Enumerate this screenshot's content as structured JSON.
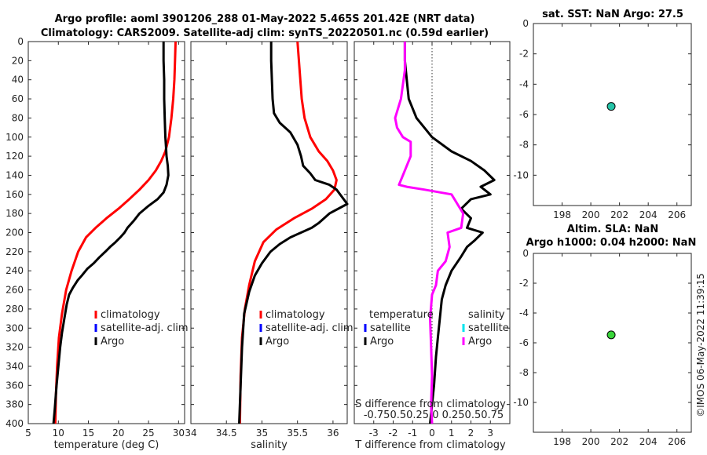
{
  "figure": {
    "title_line1": "Argo profile: aoml 3901206_288 01-May-2022 5.465S 201.42E (NRT data)",
    "title_line2": "Climatology: CARS2009. Satellite-adj clim: synTS_20220501.nc (0.59d earlier)",
    "stamp": "©IMOS 06-May-2022 11:39:15",
    "colors": {
      "climatology": "#ff0000",
      "satellite_clim": "#0000ff",
      "argo": "#000000",
      "sal_satellite": "#00e5ee",
      "sal_argo": "#ff00ff",
      "marker_sst": "#25c4a8",
      "marker_sla": "#39d43a"
    }
  },
  "chart_data": [
    {
      "id": "temperature",
      "type": "line",
      "xlabel": "temperature (deg C)",
      "ylabel": "",
      "xlim": [
        5,
        31
      ],
      "ylim": [
        0,
        400
      ],
      "y_reversed": true,
      "xticks": [
        5,
        10,
        15,
        20,
        25,
        30
      ],
      "yticks": [
        0,
        20,
        40,
        60,
        80,
        100,
        120,
        140,
        160,
        180,
        200,
        220,
        240,
        260,
        280,
        300,
        320,
        340,
        360,
        380,
        400
      ],
      "legend": [
        "climatology",
        "satellite-adj. clim",
        "Argo"
      ],
      "series": [
        {
          "name": "climatology",
          "color": "#ff0000",
          "x": [
            29.5,
            29.4,
            29.3,
            29.1,
            28.8,
            28.4,
            27.8,
            27.1,
            26.2,
            25.0,
            23.5,
            21.8,
            20.0,
            18.0,
            16.2,
            14.6,
            13.3,
            12.2,
            11.3,
            10.6,
            10.1,
            9.8,
            9.6,
            9.5
          ],
          "y": [
            0,
            20,
            40,
            60,
            80,
            100,
            115,
            125,
            135,
            145,
            155,
            165,
            175,
            185,
            195,
            205,
            220,
            240,
            260,
            285,
            310,
            340,
            370,
            400
          ]
        },
        {
          "name": "Argo",
          "color": "#000000",
          "x": [
            27.5,
            27.5,
            27.6,
            27.6,
            27.7,
            27.8,
            27.9,
            28.0,
            28.2,
            28.3,
            28.0,
            27.5,
            26.5,
            25.0,
            23.5,
            22.5,
            21.5,
            21.0,
            20.3,
            19.5,
            18.6,
            17.8,
            16.8,
            15.9,
            14.8,
            13.9,
            13.2,
            12.4,
            11.8,
            11.4,
            11.0,
            10.6,
            10.3,
            10.0,
            9.7,
            9.4,
            9.2
          ],
          "y": [
            0,
            20,
            40,
            60,
            80,
            100,
            110,
            120,
            130,
            140,
            150,
            158,
            165,
            172,
            180,
            188,
            195,
            200,
            205,
            210,
            215,
            220,
            226,
            232,
            238,
            245,
            250,
            258,
            265,
            275,
            290,
            305,
            320,
            340,
            360,
            385,
            400
          ]
        }
      ]
    },
    {
      "id": "salinity",
      "type": "line",
      "xlabel": "salinity",
      "ylabel": "",
      "xlim": [
        34,
        36.2
      ],
      "ylim": [
        0,
        400
      ],
      "y_reversed": true,
      "xticks": [
        34,
        34.5,
        35,
        35.5,
        36
      ],
      "legend": [
        "climatology",
        "satellite-adj. clim",
        "Argo"
      ],
      "series": [
        {
          "name": "climatology",
          "color": "#ff0000",
          "x": [
            35.5,
            35.52,
            35.54,
            35.56,
            35.6,
            35.68,
            35.8,
            35.92,
            36.0,
            36.05,
            36.02,
            35.9,
            35.7,
            35.45,
            35.2,
            35.02,
            34.9,
            34.82,
            34.76,
            34.72,
            34.7,
            34.69
          ],
          "y": [
            0,
            20,
            40,
            60,
            80,
            100,
            115,
            125,
            135,
            145,
            155,
            165,
            175,
            185,
            197,
            210,
            230,
            255,
            280,
            310,
            350,
            400
          ]
        },
        {
          "name": "Argo",
          "color": "#000000",
          "x": [
            35.13,
            35.13,
            35.14,
            35.15,
            35.17,
            35.25,
            35.4,
            35.5,
            35.55,
            35.58,
            35.68,
            35.75,
            35.95,
            36.05,
            36.2,
            35.95,
            35.8,
            35.7,
            35.55,
            35.4,
            35.25,
            35.12,
            35.0,
            34.9,
            34.82,
            34.75,
            34.72,
            34.7,
            34.68
          ],
          "y": [
            0,
            20,
            40,
            60,
            75,
            85,
            95,
            108,
            120,
            130,
            138,
            145,
            150,
            155,
            170,
            180,
            190,
            195,
            200,
            205,
            212,
            220,
            232,
            245,
            262,
            285,
            320,
            360,
            400
          ]
        }
      ]
    },
    {
      "id": "difference",
      "type": "line",
      "xlabel": "T difference from climatology",
      "top_label_line1": "S difference from climatology",
      "top_label_line2": "-0.750.50.25  0  0.250.50.75",
      "xlim": [
        -4,
        4
      ],
      "ylim": [
        0,
        400
      ],
      "y_reversed": true,
      "xticks": [
        -3,
        -2,
        -1,
        0,
        1,
        2,
        3
      ],
      "legend_temperature": {
        "title": "temperature",
        "items": [
          "satellite",
          "Argo"
        ]
      },
      "legend_salinity": {
        "title": "salinity",
        "items": [
          "satellite",
          "Argo"
        ]
      },
      "series": [
        {
          "name": "T Argo",
          "color": "#000000",
          "x": [
            -1.4,
            -1.4,
            -1.3,
            -1.2,
            -0.8,
            0,
            1.0,
            2.0,
            2.7,
            3.2,
            2.5,
            3.0,
            2.0,
            1.5,
            2.0,
            1.8,
            2.6,
            2.2,
            1.8,
            1.5,
            1.0,
            0.7,
            0.5,
            0.4,
            0.3,
            0.2,
            0.1,
            0.0,
            -0.1
          ],
          "y": [
            0,
            20,
            40,
            60,
            80,
            100,
            115,
            125,
            135,
            145,
            152,
            160,
            165,
            175,
            185,
            195,
            200,
            208,
            215,
            225,
            240,
            255,
            270,
            290,
            310,
            330,
            360,
            380,
            400
          ]
        },
        {
          "name": "S Argo",
          "color": "#ff00ff",
          "x": [
            -1.4,
            -1.4,
            -1.6,
            -1.9,
            -1.8,
            -1.5,
            -1.1,
            -1.1,
            -1.5,
            -1.7,
            -1.3,
            -0.4,
            1.0,
            1.6,
            1.5,
            0.8,
            0.9,
            0.7,
            0.3,
            0.2,
            0.0,
            -0.1,
            -0.05,
            0.0,
            -0.05,
            0.0
          ],
          "y": [
            0,
            30,
            60,
            80,
            90,
            100,
            105,
            120,
            140,
            150,
            152,
            155,
            160,
            180,
            195,
            200,
            215,
            230,
            240,
            255,
            265,
            290,
            320,
            350,
            380,
            400
          ]
        }
      ]
    },
    {
      "id": "sst",
      "type": "scatter",
      "title": "sat. SST: NaN Argo: 27.5",
      "xlim": [
        196,
        207
      ],
      "ylim": [
        -12,
        0
      ],
      "xticks": [
        198,
        200,
        202,
        204,
        206
      ],
      "yticks": [
        0,
        -2,
        -4,
        -6,
        -8,
        -10
      ],
      "points": [
        {
          "x": 201.42,
          "y": -5.465
        }
      ]
    },
    {
      "id": "sla",
      "type": "scatter",
      "title_line1": "Altim. SLA: NaN",
      "title_line2": "Argo h1000: 0.04 h2000: NaN",
      "xlim": [
        196,
        207
      ],
      "ylim": [
        -12,
        0
      ],
      "xticks": [
        198,
        200,
        202,
        204,
        206
      ],
      "yticks": [
        0,
        -2,
        -4,
        -6,
        -8,
        -10
      ],
      "points": [
        {
          "x": 201.42,
          "y": -5.465
        }
      ]
    }
  ]
}
